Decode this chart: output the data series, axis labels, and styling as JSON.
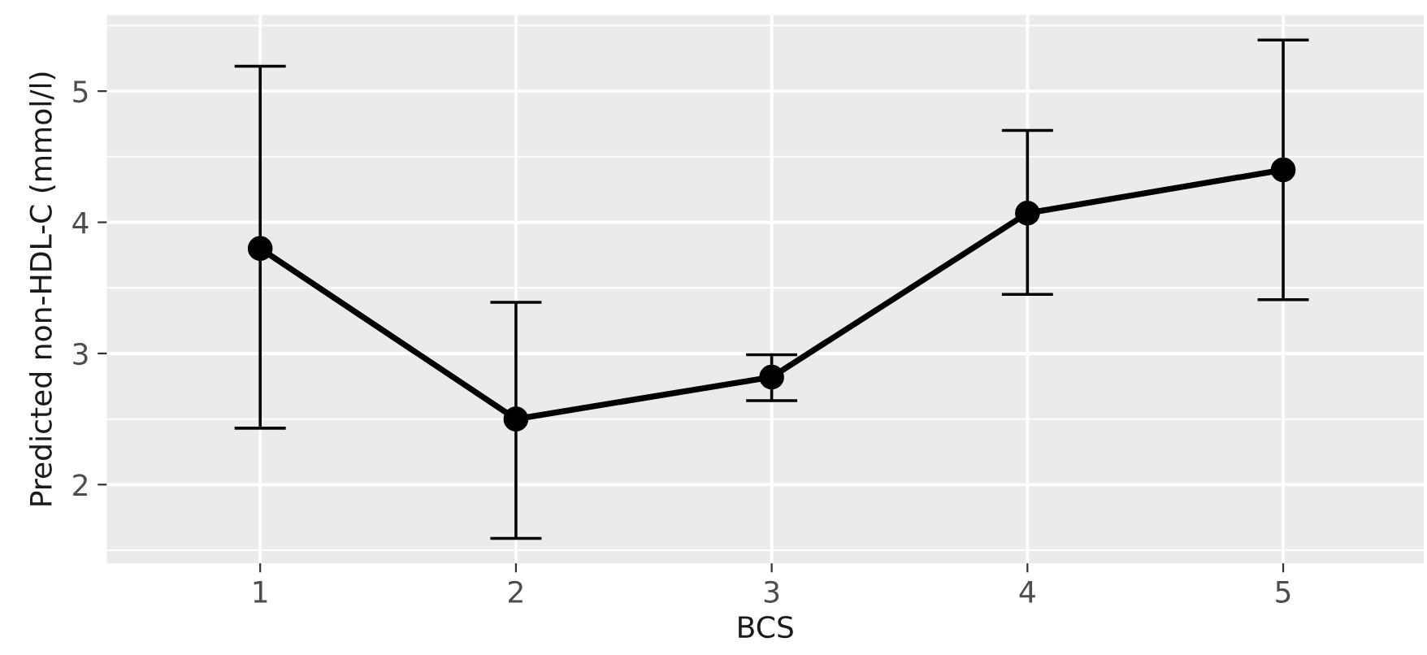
{
  "chart_data": {
    "type": "line",
    "xlabel": "BCS",
    "ylabel": "Predicted non-HDL-C (mmol/l)",
    "x": [
      1,
      2,
      3,
      4,
      5
    ],
    "series": [
      {
        "color": "#000000",
        "values": [
          3.8,
          2.5,
          2.82,
          4.07,
          4.4
        ],
        "errors": [
          [
            2.43,
            5.19
          ],
          [
            1.59,
            3.39
          ],
          [
            2.64,
            2.99
          ],
          [
            3.45,
            4.7
          ],
          [
            3.41,
            5.39
          ]
        ]
      }
    ],
    "xlim": [
      0.4,
      5.55
    ],
    "ylim": [
      1.4,
      5.58
    ],
    "xticks": [
      1,
      2,
      3,
      4,
      5
    ],
    "yticks": [
      2,
      3,
      4,
      5
    ],
    "grid": true,
    "marker": "circle",
    "line_style": "solid"
  }
}
